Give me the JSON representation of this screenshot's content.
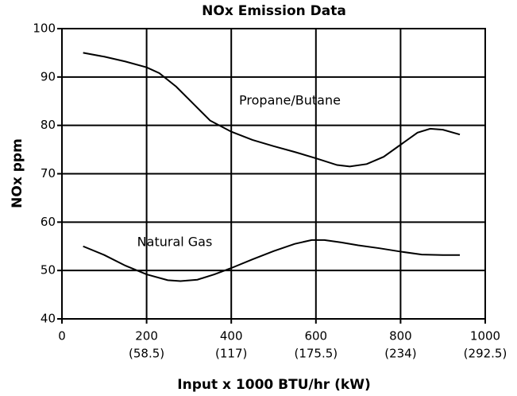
{
  "chart_data": {
    "type": "line",
    "title": "NOx Emission Data",
    "x_label": "Input x 1000 BTU/hr (kW)",
    "y_label": "NOx ppm",
    "xlim": [
      0,
      1000
    ],
    "xticks": [
      0,
      200,
      400,
      600,
      800,
      1000
    ],
    "xtick_sublabels": [
      null,
      "(58.5)",
      "(117)",
      "(175.5)",
      "(234)",
      "(292.5)"
    ],
    "ylim": [
      40,
      100
    ],
    "yticks": [
      40,
      50,
      60,
      70,
      80,
      90,
      100
    ],
    "grid": true,
    "series": [
      {
        "name": "Propane/Butane",
        "color": "#000000",
        "x": [
          50,
          100,
          150,
          200,
          230,
          270,
          310,
          350,
          400,
          450,
          500,
          550,
          600,
          650,
          680,
          720,
          760,
          800,
          840,
          870,
          900,
          940
        ],
        "values": [
          95,
          94.2,
          93.2,
          92,
          90.8,
          88,
          84.5,
          81,
          78.7,
          77,
          75.7,
          74.5,
          73.2,
          71.8,
          71.5,
          72,
          73.5,
          76,
          78.5,
          79.3,
          79.1,
          78.1
        ]
      },
      {
        "name": "Natural Gas",
        "color": "#000000",
        "x": [
          50,
          100,
          150,
          200,
          250,
          280,
          320,
          360,
          400,
          450,
          500,
          550,
          590,
          620,
          660,
          700,
          750,
          800,
          850,
          900,
          940
        ],
        "values": [
          55,
          53.2,
          51,
          49.2,
          48,
          47.8,
          48.1,
          49.2,
          50.5,
          52.3,
          54,
          55.5,
          56.3,
          56.3,
          55.8,
          55.2,
          54.6,
          53.9,
          53.3,
          53.2,
          53.2
        ]
      }
    ]
  }
}
